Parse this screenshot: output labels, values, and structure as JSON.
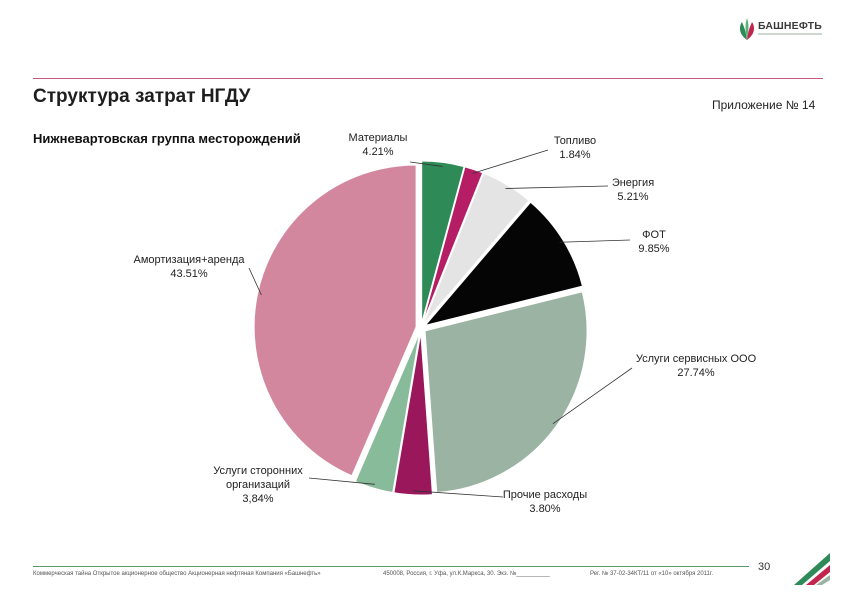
{
  "header": {
    "brand": "БАШНЕФТЬ",
    "title": "Структура затрат НГДУ",
    "appendix": "Приложение № 14",
    "subtitle": "Нижневартовская группа месторождений"
  },
  "colors": {
    "accent_rule": "#c65a7e",
    "footer_rule": "#5a9a6a",
    "logo_green": "#2e8b57",
    "logo_red": "#c0264e"
  },
  "chart_data": {
    "type": "pie",
    "title": "",
    "slices": [
      {
        "label": "Материалы",
        "value": 4.21,
        "display": "4.21%",
        "color": "#2e8b57"
      },
      {
        "label": "Топливо",
        "value": 1.84,
        "display": "1.84%",
        "color": "#b51d65"
      },
      {
        "label": "Энергия",
        "value": 5.21,
        "display": "5.21%",
        "color": "#e4e4e4"
      },
      {
        "label": "ФОТ",
        "value": 9.85,
        "display": "9.85%",
        "color": "#050505"
      },
      {
        "label": "Услуги сервисных ООО",
        "value": 27.74,
        "display": "27.74%",
        "color": "#9bb3a3"
      },
      {
        "label": "Прочие расходы",
        "value": 3.8,
        "display": "3.80%",
        "color": "#99175a"
      },
      {
        "label": "Услуги сторонних организаций",
        "label_lines": [
          "Услуги сторонних",
          "организаций"
        ],
        "value": 3.84,
        "display": "3,84%",
        "color": "#88bb9a"
      },
      {
        "label": "Амортизация+аренда",
        "value": 43.51,
        "display": "43.51%",
        "color": "#d3879f"
      }
    ]
  },
  "footer": {
    "secrecy": "Коммерческая тайна Открытое акционерное общество Акционерная нефтяная Компания «Башнефть»",
    "address": "450008, Россия, г. Уфа, ул.К.Маркса, 30. Экз. №__________",
    "reg": "Рег. № 37-02-34КТ/11 от «10» октября 2011г.",
    "page": "30"
  }
}
